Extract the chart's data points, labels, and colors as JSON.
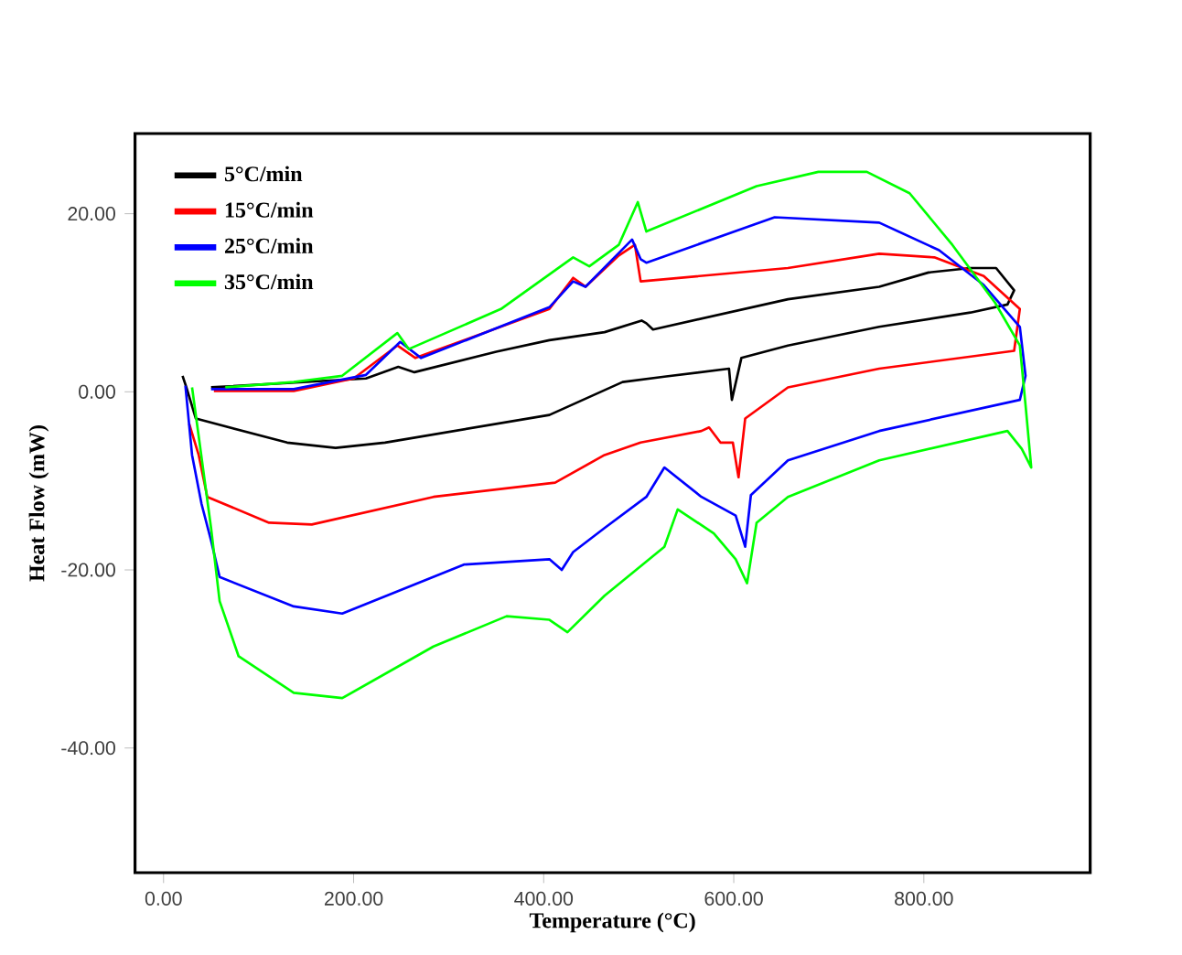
{
  "chart_data": {
    "type": "line",
    "xlabel": "Temperature (°C)",
    "ylabel": "Heat Flow (mW)",
    "xlim": [
      -30,
      975
    ],
    "ylim": [
      -54,
      29
    ],
    "xticks": [
      {
        "value": 0,
        "label": "0.00"
      },
      {
        "value": 200,
        "label": "200.00"
      },
      {
        "value": 400,
        "label": "400.00"
      },
      {
        "value": 600,
        "label": "600.00"
      },
      {
        "value": 800,
        "label": "800.00"
      }
    ],
    "yticks": [
      {
        "value": -40,
        "label": "-40.00"
      },
      {
        "value": -20,
        "label": "-20.00"
      },
      {
        "value": 0,
        "label": "0.00"
      },
      {
        "value": 20,
        "label": "20.00"
      }
    ],
    "grid": false,
    "legend": "top left",
    "marker": "none",
    "line_style": "solid",
    "series": [
      {
        "name": "5°C/min",
        "color": "#000000",
        "x": [
          50,
          213,
          247,
          264,
          350,
          406,
          464,
          503,
          508,
          515,
          657,
          753,
          805,
          849,
          876,
          895,
          888,
          849,
          753,
          657,
          608,
          598,
          595,
          527,
          483,
          406,
          233,
          181,
          130,
          34,
          24,
          20
        ],
        "values": [
          0.5,
          1.5,
          2.8,
          2.2,
          4.5,
          5.8,
          6.7,
          8,
          7.7,
          7.0,
          10.4,
          11.8,
          13.4,
          13.9,
          13.9,
          11.4,
          9.8,
          8.9,
          7.3,
          5.2,
          3.8,
          -0.9,
          2.6,
          1.7,
          1.1,
          -2.6,
          -5.7,
          -6.3,
          -5.7,
          -3,
          0.5,
          1.8
        ]
      },
      {
        "name": "15°C/min",
        "color": "#ff0000",
        "x": [
          53,
          137,
          200,
          246,
          265,
          406,
          431,
          444,
          479,
          496,
          502,
          657,
          753,
          811,
          863,
          901,
          895,
          753,
          657,
          612,
          605,
          599,
          586,
          574,
          566,
          502,
          464,
          412,
          284,
          156,
          111,
          46,
          37,
          27
        ],
        "values": [
          0.1,
          0.1,
          1.5,
          5.2,
          3.8,
          9.3,
          12.8,
          11.8,
          15.3,
          16.5,
          12.4,
          13.9,
          15.5,
          15.1,
          13,
          9.3,
          4.6,
          2.6,
          0.5,
          -3,
          -9.6,
          -5.7,
          -5.7,
          -4,
          -4.4,
          -5.7,
          -7.1,
          -10.2,
          -11.8,
          -14.9,
          -14.7,
          -11.8,
          -7.1,
          -3.6
        ]
      },
      {
        "name": "25°C/min",
        "color": "#0000ff",
        "x": [
          50,
          137,
          213,
          249,
          271,
          406,
          431,
          444,
          493,
          502,
          508,
          643,
          753,
          816,
          863,
          901,
          907,
          901,
          753,
          657,
          618,
          612,
          602,
          566,
          527,
          508,
          464,
          431,
          419,
          406,
          316,
          188,
          137,
          59,
          50,
          40,
          30,
          23
        ],
        "values": [
          0.3,
          0.3,
          1.9,
          5.6,
          3.8,
          9.5,
          12.4,
          11.8,
          17.1,
          14.9,
          14.5,
          19.6,
          19,
          15.9,
          12,
          7.3,
          1.8,
          -0.9,
          -4.4,
          -7.7,
          -11.6,
          -17.4,
          -13.9,
          -11.8,
          -8.5,
          -11.8,
          -15.3,
          -18,
          -20,
          -18.8,
          -19.4,
          -24.9,
          -24.1,
          -20.8,
          -16.7,
          -12.6,
          -7.1,
          0.7
        ]
      },
      {
        "name": "35°C/min",
        "color": "#00ff00",
        "x": [
          65,
          137,
          188,
          246,
          258,
          355,
          431,
          448,
          479,
          499,
          508,
          624,
          689,
          740,
          785,
          830,
          875,
          901,
          907,
          913,
          903,
          888,
          753,
          657,
          624,
          614,
          602,
          579,
          541,
          527,
          464,
          425,
          406,
          361,
          284,
          188,
          137,
          79,
          59,
          50,
          37,
          30
        ],
        "values": [
          0.5,
          1.1,
          1.8,
          6.6,
          4.8,
          9.3,
          15.1,
          14.1,
          16.5,
          21.3,
          18,
          23.1,
          24.7,
          24.7,
          22.3,
          16.5,
          10,
          5.2,
          -1.5,
          -8.5,
          -6.4,
          -4.4,
          -7.7,
          -11.8,
          -14.7,
          -21.5,
          -18.8,
          -15.9,
          -13.2,
          -17.4,
          -22.9,
          -27,
          -25.6,
          -25.2,
          -28.6,
          -34.4,
          -33.8,
          -29.7,
          -23.5,
          -15.3,
          -5,
          0.5
        ]
      }
    ]
  }
}
